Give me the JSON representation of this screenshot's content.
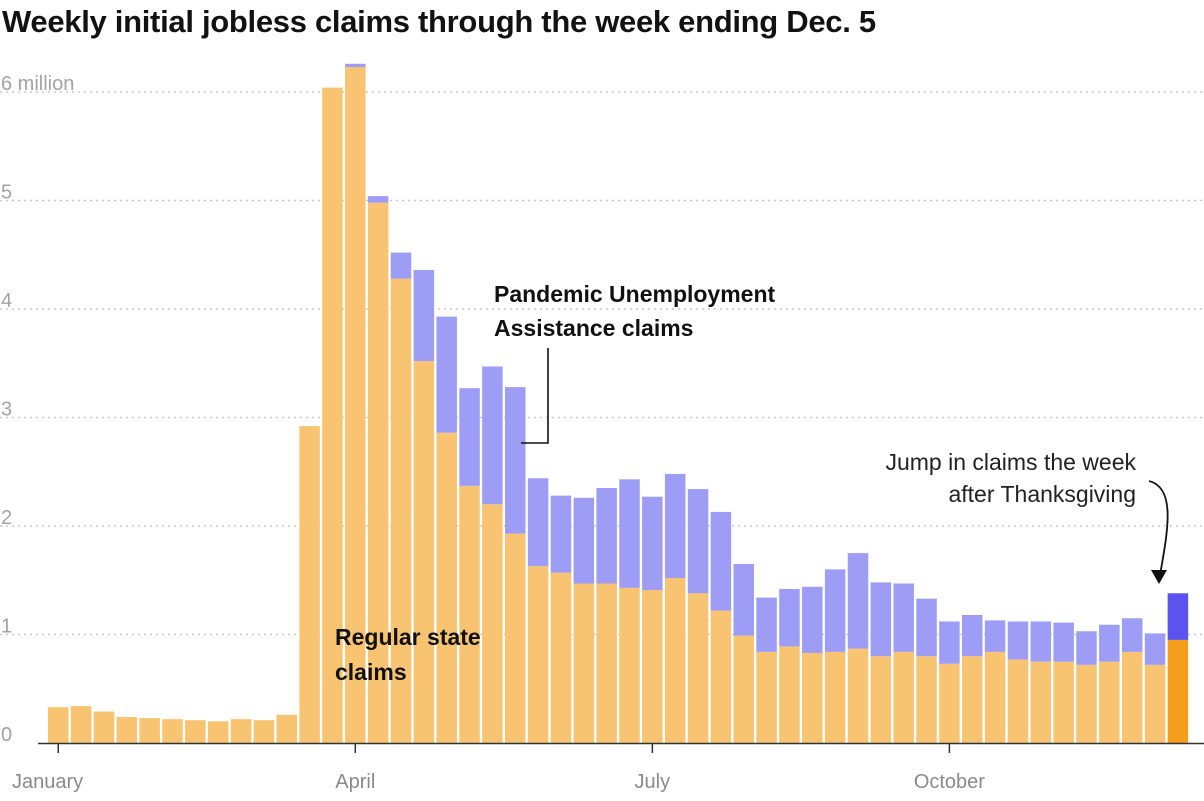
{
  "chart_data": {
    "type": "bar",
    "stacked": true,
    "title": "Weekly initial jobless claims through the week ending Dec. 5",
    "ylim": [
      0,
      6.3
    ],
    "y_ticks": [
      {
        "value": 0,
        "label": "0"
      },
      {
        "value": 1,
        "label": "1"
      },
      {
        "value": 2,
        "label": "2"
      },
      {
        "value": 3,
        "label": "3"
      },
      {
        "value": 4,
        "label": "4"
      },
      {
        "value": 5,
        "label": "5"
      },
      {
        "value": 6,
        "label": "6 million"
      }
    ],
    "x_ticks": [
      {
        "week_index": 0,
        "label": "January"
      },
      {
        "week_index": 13,
        "label": "April"
      },
      {
        "week_index": 26,
        "label": "July"
      },
      {
        "week_index": 39,
        "label": "October"
      }
    ],
    "grid": true,
    "colors": {
      "regular": "#f8c472",
      "pua": "#9d9df5",
      "regular_latest": "#f59e1c",
      "pua_latest": "#5b53ee"
    },
    "series": [
      {
        "name": "Regular state claims",
        "values": [
          0.33,
          0.34,
          0.29,
          0.24,
          0.23,
          0.22,
          0.21,
          0.2,
          0.22,
          0.21,
          0.26,
          2.92,
          6.04,
          6.23,
          4.98,
          4.28,
          3.52,
          2.86,
          2.37,
          2.2,
          1.93,
          1.63,
          1.57,
          1.47,
          1.47,
          1.43,
          1.41,
          1.52,
          1.38,
          1.22,
          0.99,
          0.84,
          0.89,
          0.83,
          0.84,
          0.87,
          0.8,
          0.84,
          0.8,
          0.73,
          0.8,
          0.84,
          0.77,
          0.75,
          0.75,
          0.72,
          0.75,
          0.84,
          0.72,
          0.95
        ]
      },
      {
        "name": "Pandemic Unemployment Assistance claims",
        "values": [
          0,
          0,
          0,
          0,
          0,
          0,
          0,
          0,
          0,
          0,
          0,
          0,
          0,
          0.03,
          0.06,
          0.24,
          0.84,
          1.07,
          0.9,
          1.27,
          1.35,
          0.81,
          0.71,
          0.79,
          0.88,
          1.0,
          0.86,
          0.96,
          0.96,
          0.91,
          0.66,
          0.5,
          0.53,
          0.61,
          0.76,
          0.88,
          0.68,
          0.63,
          0.53,
          0.39,
          0.38,
          0.29,
          0.35,
          0.37,
          0.36,
          0.31,
          0.34,
          0.31,
          0.29,
          0.43
        ]
      }
    ],
    "annotations": {
      "pua_line1": "Pandemic Unemployment",
      "pua_line2": "Assistance claims",
      "regular_line1": "Regular state",
      "regular_line2": "claims",
      "jump_line1": "Jump in claims the week",
      "jump_line2": "after Thanksgiving"
    }
  }
}
